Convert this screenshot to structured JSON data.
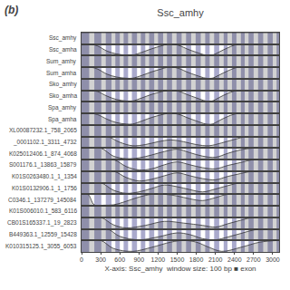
{
  "chart_data": {
    "type": "area",
    "title": "Ssc_amhy",
    "xlabel": "X-axis: Ssc_amhy  window size: 100 bp ■ exon",
    "annotations": [
      "(b)"
    ],
    "xlim": [
      0,
      3100
    ],
    "xticks": [
      0,
      300,
      600,
      900,
      1200,
      1500,
      1800,
      2100,
      2400,
      2700,
      3000
    ],
    "ylim": [
      0,
      1
    ],
    "grid": false,
    "bands": {
      "color": "#aaaacc",
      "ranges": [
        [
          0,
          120
        ],
        [
          200,
          310
        ],
        [
          380,
          470
        ],
        [
          530,
          600
        ],
        [
          660,
          730
        ],
        [
          790,
          870
        ],
        [
          930,
          1000
        ],
        [
          1060,
          1140
        ],
        [
          1200,
          1280
        ],
        [
          1340,
          1420
        ],
        [
          1490,
          1570
        ],
        [
          1640,
          1720
        ],
        [
          1790,
          1870
        ],
        [
          1940,
          2010
        ],
        [
          2080,
          2160
        ],
        [
          2230,
          2290
        ],
        [
          2360,
          2430
        ],
        [
          2500,
          2560
        ],
        [
          2620,
          2700
        ],
        [
          2770,
          2850
        ],
        [
          2920,
          3000
        ],
        [
          3060,
          3100
        ]
      ]
    },
    "series": [
      {
        "name": "Ssc_amhy",
        "color": "#333333",
        "x": [
          0,
          3100
        ],
        "values": [
          1,
          1
        ]
      },
      {
        "name": "Ssc_amha",
        "color": "#333333",
        "x": [
          0,
          150,
          250,
          400,
          550,
          700,
          800,
          950,
          1100,
          1250,
          1350,
          1450,
          1550,
          1650,
          1800,
          1950,
          2050,
          2150,
          2300,
          2450,
          2600,
          2750,
          3100
        ],
        "values": [
          1,
          1,
          0.85,
          0.4,
          0.15,
          0.05,
          0.05,
          0.3,
          0.6,
          0.85,
          1,
          1,
          0.85,
          0.6,
          0.3,
          0.05,
          0.05,
          0.3,
          0.7,
          1,
          1,
          1,
          1
        ]
      },
      {
        "name": "Sum_amhy",
        "color": "#333333",
        "x": [
          0,
          3100
        ],
        "values": [
          1,
          1
        ]
      },
      {
        "name": "Sum_amha",
        "color": "#333333",
        "x": [
          0,
          150,
          250,
          400,
          550,
          700,
          800,
          950,
          1100,
          1250,
          1350,
          1450,
          1550,
          1650,
          1800,
          1950,
          2050,
          2150,
          2300,
          2450,
          2600,
          2750,
          3100
        ],
        "values": [
          1,
          1,
          0.85,
          0.4,
          0.15,
          0.05,
          0.05,
          0.3,
          0.6,
          0.85,
          1,
          1,
          0.85,
          0.6,
          0.3,
          0.05,
          0.05,
          0.3,
          0.7,
          1,
          1,
          1,
          1
        ]
      },
      {
        "name": "Sko_amhy",
        "color": "#333333",
        "x": [
          0,
          3100
        ],
        "values": [
          1,
          1
        ]
      },
      {
        "name": "Sko_amha",
        "color": "#333333",
        "x": [
          0,
          150,
          250,
          400,
          550,
          700,
          800,
          950,
          1100,
          1250,
          1350,
          1450,
          1550,
          1650,
          1800,
          1950,
          2050,
          2150,
          2300,
          2450,
          2600,
          3100
        ],
        "values": [
          1,
          1,
          0.9,
          0.5,
          0.2,
          0.08,
          0.08,
          0.35,
          0.65,
          0.88,
          1,
          1,
          0.88,
          0.65,
          0.35,
          0.08,
          0.08,
          0.35,
          0.75,
          1,
          1,
          1
        ]
      },
      {
        "name": "Spa_amhy",
        "color": "#333333",
        "x": [
          0,
          3100
        ],
        "values": [
          1,
          1
        ]
      },
      {
        "name": "Spa_amha",
        "color": "#333333",
        "x": [
          0,
          150,
          250,
          400,
          550,
          700,
          800,
          950,
          1100,
          1250,
          1350,
          1450,
          1550,
          1650,
          1800,
          1950,
          2050,
          2150,
          2300,
          2450,
          2600,
          3100
        ],
        "values": [
          1,
          1,
          0.9,
          0.5,
          0.2,
          0.08,
          0.08,
          0.35,
          0.65,
          0.88,
          1,
          1,
          0.88,
          0.65,
          0.35,
          0.08,
          0.08,
          0.35,
          0.75,
          1,
          1,
          1
        ]
      },
      {
        "name": "XL00087232.1_758_2065",
        "color": "#333333",
        "x": [
          0,
          3100
        ],
        "values": [
          1,
          1
        ]
      },
      {
        "name": "_0001102.1_3311_4732",
        "color": "#333333",
        "x": [
          0,
          400,
          600,
          800,
          1000,
          1200,
          1400,
          1600,
          1800,
          2000,
          2200,
          2400,
          2600,
          3100
        ],
        "values": [
          1,
          1,
          0.5,
          0.2,
          0.3,
          0.55,
          0.7,
          0.55,
          0.3,
          0.2,
          0.45,
          0.75,
          1,
          1
        ]
      },
      {
        "name": "K025012406.1_874_4068",
        "color": "#333333",
        "x": [
          0,
          300,
          500,
          700,
          900,
          1100,
          1300,
          1500,
          1700,
          1900,
          2100,
          2300,
          2500,
          2700,
          3100
        ],
        "values": [
          1,
          1,
          0.3,
          0.08,
          0.15,
          0.4,
          0.7,
          0.9,
          0.6,
          0.3,
          0.2,
          0.55,
          0.85,
          1,
          1
        ]
      },
      {
        "name": "S001176.1_13863_15879",
        "color": "#333333",
        "x": [
          0,
          500,
          700,
          900,
          1100,
          1300,
          1500,
          1700,
          1900,
          2100,
          2300,
          2500,
          2700,
          3100
        ],
        "values": [
          1,
          1,
          0.4,
          0.1,
          0.2,
          0.55,
          0.8,
          0.55,
          0.3,
          0.2,
          0.5,
          0.75,
          1,
          1
        ]
      },
      {
        "name": "K01S0263480.1_1_1354",
        "color": "#333333",
        "x": [
          0,
          500,
          700,
          900,
          1100,
          1300,
          1500,
          1700,
          1900,
          2100,
          2300,
          2500,
          2700,
          3100
        ],
        "values": [
          1,
          1,
          0.45,
          0.15,
          0.3,
          0.6,
          0.85,
          0.6,
          0.35,
          0.25,
          0.55,
          0.8,
          1,
          1
        ]
      },
      {
        "name": "K01S0132906.1_1_1756",
        "color": "#333333",
        "x": [
          0,
          300,
          500,
          700,
          900,
          1100,
          1300,
          1500,
          1700,
          1900,
          2100,
          2300,
          2500,
          3100
        ],
        "values": [
          1,
          1,
          0.35,
          0.08,
          0.2,
          0.5,
          0.8,
          0.65,
          0.4,
          0.2,
          0.45,
          0.75,
          1,
          1
        ]
      },
      {
        "name": "C0346.1_137279_145084",
        "color": "#333333",
        "x": [
          0,
          100,
          200,
          350,
          500,
          650,
          900,
          1100,
          1300,
          1500,
          1700,
          1900,
          2100,
          2300,
          3100
        ],
        "values": [
          1,
          1,
          0.08,
          0.05,
          0.08,
          0.3,
          0.75,
          1,
          1,
          0.85,
          0.6,
          0.45,
          0.7,
          1,
          1
        ]
      },
      {
        "name": "K01S006010.1_583_6116",
        "color": "#333333",
        "x": [
          0,
          3100
        ],
        "values": [
          1,
          1
        ]
      },
      {
        "name": "CB01S165337.1_19_2823",
        "color": "#333333",
        "x": [
          0,
          300,
          500,
          700,
          1000,
          1300,
          1600,
          1900,
          2100,
          2300,
          2500,
          2700,
          3100
        ],
        "values": [
          1,
          1,
          0.35,
          0.08,
          0.3,
          0.65,
          0.5,
          0.3,
          0.15,
          0.45,
          0.75,
          1,
          1
        ]
      },
      {
        "name": "B449363.1_12559_15428",
        "color": "#333333",
        "x": [
          0,
          400,
          600,
          900,
          1200,
          1500,
          1700,
          1900,
          2100,
          2300,
          2500,
          2700,
          2900,
          3100
        ],
        "values": [
          1,
          1,
          0.35,
          0.05,
          0.3,
          0.65,
          0.5,
          0.15,
          0.05,
          0.3,
          0.6,
          0.9,
          1,
          1
        ]
      },
      {
        "name": "K010315125.1_3055_6053",
        "color": "#333333",
        "x": [
          0,
          300,
          500,
          800,
          1100,
          1400,
          1600,
          1800,
          2000,
          2200,
          2500,
          2800,
          3100
        ],
        "values": [
          1,
          1,
          0.3,
          0.05,
          0.4,
          0.85,
          1,
          0.85,
          0.4,
          0.05,
          0.4,
          0.85,
          1
        ]
      }
    ]
  }
}
